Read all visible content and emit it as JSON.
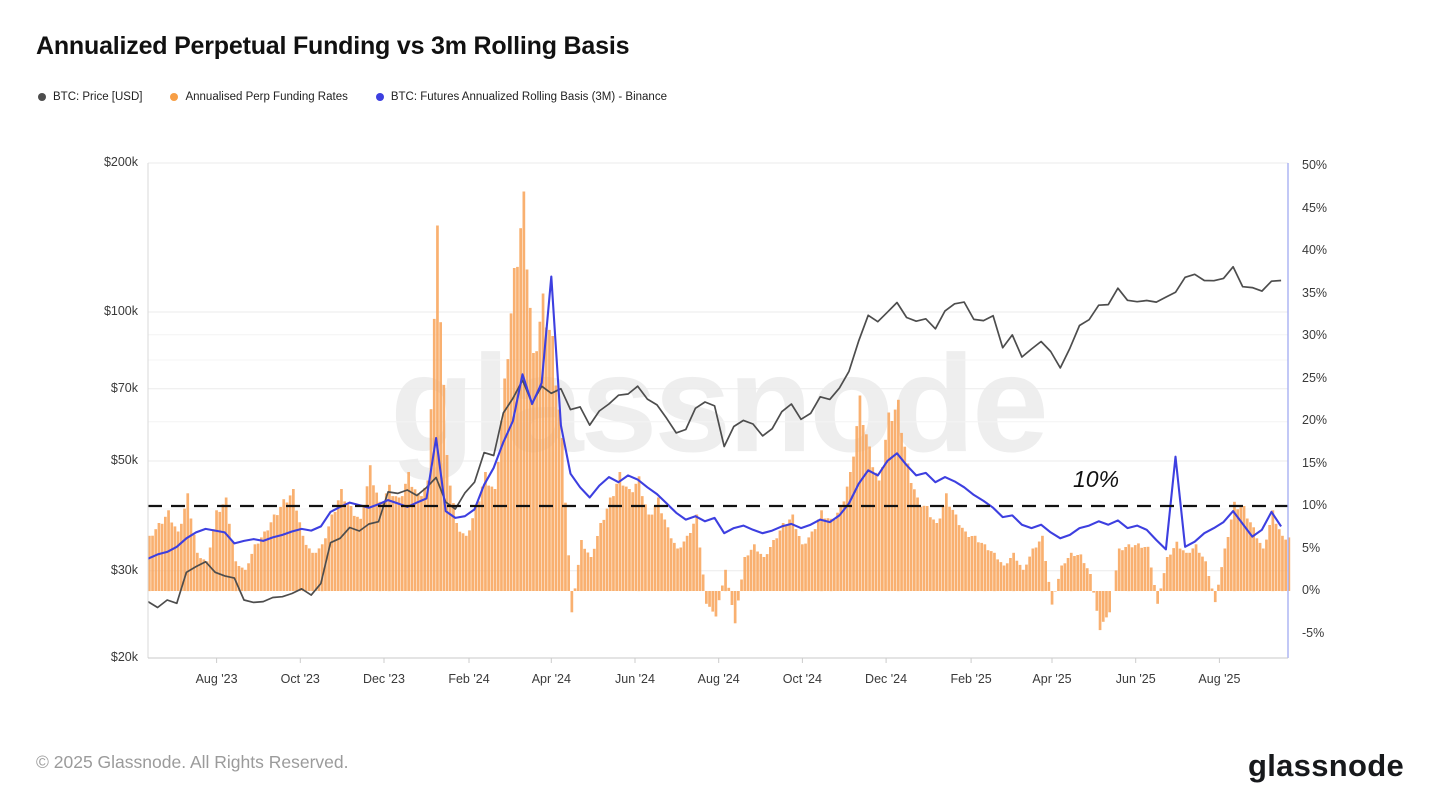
{
  "title": "Annualized Perpetual Funding vs 3m Rolling Basis",
  "watermark": "glassnode",
  "legend": [
    {
      "label": "BTC: Price [USD]",
      "color": "#4d4d4d"
    },
    {
      "label": "Annualised Perp Funding Rates",
      "color": "#f79e45"
    },
    {
      "label": "BTC: Futures Annualized Rolling Basis (3M) - Binance",
      "color": "#3d3fe0"
    }
  ],
  "footer": {
    "copyright": "© 2025 Glassnode. All Rights Reserved.",
    "logo": "glassnode"
  },
  "colors": {
    "price_line": "#4d4d4d",
    "funding_bar": "#f8a55c",
    "basis_line": "#3d3fe0",
    "grid_major": "#ebebeb",
    "grid_minor": "#f4f4f4",
    "axis_line": "#c9c9c9",
    "right_border": "#a8b0f2",
    "ref_line": "#111111"
  },
  "chart_data": {
    "type": "mixed",
    "title": "Annualized Perpetual Funding vs 3m Rolling Basis",
    "x_start": "2023-06-12",
    "x_end": "2025-09-20",
    "sample_interval_days": 7,
    "total_days": 831,
    "x_ticks": [
      {
        "label": "Aug '23",
        "day": 50
      },
      {
        "label": "Oct '23",
        "day": 111
      },
      {
        "label": "Dec '23",
        "day": 172
      },
      {
        "label": "Feb '24",
        "day": 234
      },
      {
        "label": "Apr '24",
        "day": 294
      },
      {
        "label": "Jun '24",
        "day": 355
      },
      {
        "label": "Aug '24",
        "day": 416
      },
      {
        "label": "Oct '24",
        "day": 477
      },
      {
        "label": "Dec '24",
        "day": 538
      },
      {
        "label": "Feb '25",
        "day": 600
      },
      {
        "label": "Apr '25",
        "day": 659
      },
      {
        "label": "Jun '25",
        "day": 720
      },
      {
        "label": "Aug '25",
        "day": 781
      }
    ],
    "left_axis": {
      "scale": "log",
      "unit": "USD",
      "range_k": [
        20,
        200
      ],
      "ticks": [
        {
          "label": "$200k",
          "value_k": 200
        },
        {
          "label": "$100k",
          "value_k": 100
        },
        {
          "label": "$70k",
          "value_k": 70
        },
        {
          "label": "$50k",
          "value_k": 50
        },
        {
          "label": "$30k",
          "value_k": 30
        },
        {
          "label": "$20k",
          "value_k": 20
        }
      ],
      "minor_gridlines_k": [
        90,
        80,
        60,
        40
      ]
    },
    "right_axis": {
      "unit": "%",
      "range": [
        -8.2,
        50
      ],
      "ticks": [
        50,
        45,
        40,
        35,
        30,
        25,
        20,
        15,
        10,
        5,
        0,
        -5
      ]
    },
    "ref_line": {
      "value": 10,
      "label": "10%",
      "style": "dashed"
    },
    "series": [
      {
        "name": "BTC: Price [USD]",
        "type": "line",
        "axis": "left",
        "unit": "k USD",
        "color": "#4d4d4d",
        "values": [
          26.0,
          25.3,
          26.2,
          25.8,
          29.8,
          30.6,
          31.3,
          29.8,
          29.3,
          29.0,
          26.2,
          25.9,
          26.0,
          26.5,
          26.6,
          27.0,
          27.6,
          26.8,
          28.3,
          34.2,
          34.9,
          36.7,
          36.1,
          37.3,
          37.7,
          43.3,
          43.0,
          43.7,
          42.6,
          44.2,
          46.3,
          41.3,
          40.0,
          43.1,
          45.3,
          52.0,
          51.3,
          62.5,
          66.9,
          72.8,
          65.5,
          70.8,
          68.5,
          70.0,
          63.5,
          64.3,
          59.1,
          63.1,
          65.2,
          67.9,
          68.3,
          70.8,
          66.7,
          64.9,
          61.0,
          57.0,
          57.9,
          63.9,
          65.8,
          64.6,
          53.5,
          58.7,
          60.4,
          59.4,
          56.2,
          58.1,
          62.9,
          65.2,
          60.7,
          62.4,
          67.4,
          66.6,
          70.2,
          75.9,
          87.3,
          98.5,
          95.6,
          99.9,
          104.5,
          97.5,
          95.8,
          96.9,
          92.5,
          100.5,
          103.9,
          104.7,
          96.6,
          96.1,
          98.3,
          84.7,
          89.9,
          81.1,
          84.2,
          87.2,
          83.2,
          77.1,
          84.5,
          93.9,
          96.5,
          103.2,
          103.5,
          111.7,
          105.6,
          104.9,
          105.5,
          104.7,
          107.2,
          109.6,
          117.5,
          119.2,
          115.8,
          115.7,
          116.9,
          123.4,
          112.5,
          112.0,
          110.2,
          115.4,
          115.8
        ]
      },
      {
        "name": "Annualised Perp Funding Rates",
        "type": "bar",
        "axis": "right",
        "unit": "%",
        "color": "#f8a55c",
        "values": [
          6.5,
          8.0,
          9.5,
          7.0,
          11.5,
          4.5,
          3.5,
          9.5,
          11.0,
          3.5,
          2.5,
          5.5,
          7.0,
          9.0,
          10.8,
          12.0,
          6.5,
          4.5,
          5.5,
          9.0,
          12.0,
          10.0,
          8.5,
          14.8,
          10.5,
          12.5,
          11.0,
          14.0,
          11.5,
          13.0,
          43.0,
          16.0,
          8.0,
          6.5,
          10.0,
          14.0,
          12.0,
          25.0,
          38.0,
          47.0,
          28.0,
          35.0,
          30.0,
          18.0,
          -2.5,
          6.0,
          4.0,
          8.0,
          11.0,
          14.0,
          12.0,
          13.5,
          9.0,
          11.0,
          7.5,
          5.0,
          6.5,
          9.0,
          -1.5,
          -3.0,
          2.5,
          -3.8,
          4.0,
          5.5,
          4.0,
          6.0,
          8.0,
          9.0,
          5.5,
          7.0,
          9.5,
          8.5,
          10.0,
          14.0,
          23.0,
          17.0,
          13.0,
          21.0,
          22.5,
          15.0,
          11.0,
          10.0,
          8.0,
          11.5,
          9.0,
          7.0,
          6.5,
          5.5,
          4.5,
          3.0,
          4.5,
          2.5,
          5.0,
          6.5,
          -1.6,
          3.0,
          4.5,
          4.3,
          2.0,
          -4.6,
          -2.5,
          5.0,
          5.5,
          5.6,
          5.2,
          -1.5,
          4.0,
          5.8,
          4.5,
          5.5,
          3.5,
          -1.3,
          5.0,
          10.5,
          10.0,
          7.5,
          5.0,
          9.5,
          6.5
        ]
      },
      {
        "name": "BTC: Futures Annualized Rolling Basis (3M) - Binance",
        "type": "line",
        "axis": "right",
        "unit": "%",
        "color": "#3d3fe0",
        "values": [
          3.8,
          4.3,
          4.6,
          5.2,
          6.2,
          6.9,
          7.3,
          7.1,
          6.9,
          5.6,
          5.9,
          6.1,
          5.9,
          6.3,
          6.6,
          7.0,
          7.3,
          7.1,
          7.6,
          9.3,
          9.9,
          10.4,
          10.1,
          9.8,
          10.2,
          10.7,
          10.3,
          9.9,
          10.4,
          10.9,
          18.0,
          9.4,
          8.6,
          8.8,
          9.6,
          12.5,
          14.5,
          17.5,
          20.0,
          25.5,
          22.0,
          24.5,
          37.0,
          19.5,
          13.8,
          12.2,
          11.0,
          12.4,
          13.4,
          12.8,
          13.6,
          13.1,
          12.2,
          11.4,
          10.3,
          9.2,
          8.4,
          8.8,
          8.2,
          8.6,
          6.8,
          7.4,
          7.7,
          7.2,
          6.8,
          7.1,
          7.6,
          7.9,
          7.4,
          7.8,
          8.4,
          8.1,
          8.9,
          10.3,
          12.6,
          14.2,
          13.6,
          15.3,
          16.2,
          14.8,
          13.6,
          13.9,
          12.8,
          13.4,
          12.9,
          12.2,
          11.3,
          10.6,
          9.8,
          8.7,
          8.9,
          7.8,
          7.4,
          7.8,
          6.9,
          6.2,
          6.6,
          7.4,
          7.7,
          8.2,
          7.8,
          8.3,
          7.4,
          7.7,
          7.2,
          6.0,
          4.9,
          15.8,
          5.2,
          5.8,
          6.8,
          7.4,
          8.1,
          9.4,
          7.9,
          6.4,
          7.2,
          9.3,
          7.6
        ]
      }
    ]
  }
}
